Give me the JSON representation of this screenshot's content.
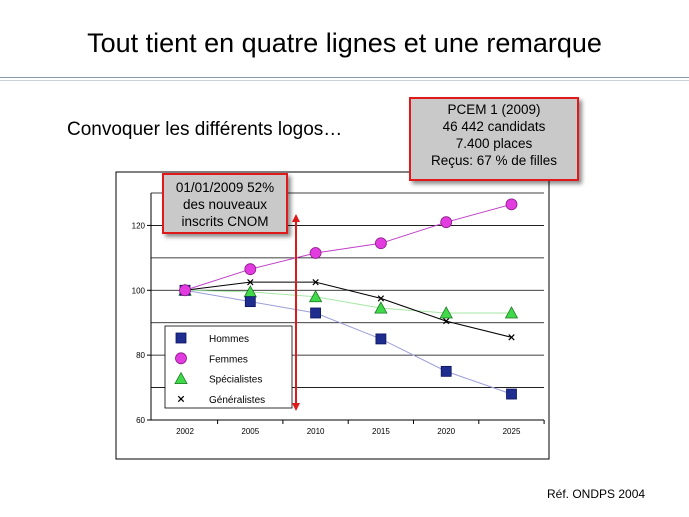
{
  "slide": {
    "title": "Tout tient en quatre lignes et une remarque",
    "subtitle": "Convoquer les différents logos…",
    "reference": "Réf. ONDPS 2004"
  },
  "callouts": {
    "pcem": [
      "PCEM 1 (2009)",
      "46 442 candidats",
      "7.400 places",
      "Reçus: 67 % de filles"
    ],
    "cnom": [
      "01/01/2009 52%",
      "des nouveaux",
      "inscrits CNOM"
    ]
  },
  "colors": {
    "accent_red": "#e0191a",
    "callout_fill": "#c9c9c9",
    "hommes": "#1f2d8f",
    "femmes": "#e23be0",
    "specialistes": "#3fd94a",
    "generalistes": "#000000"
  },
  "chart_data": {
    "type": "line",
    "title": "",
    "xlabel": "",
    "ylabel": "",
    "x": [
      2002,
      2005,
      2010,
      2015,
      2020,
      2025
    ],
    "ylim": [
      60,
      130
    ],
    "yticks": [
      60,
      80,
      100,
      120
    ],
    "grid": true,
    "legend_position": "bottom-left",
    "annotation_year": 2009,
    "series": [
      {
        "name": "Hommes",
        "marker": "square",
        "color": "#1f2d8f",
        "line_color": "#9b9ed8",
        "values": [
          100,
          96.5,
          93,
          85,
          75,
          68
        ]
      },
      {
        "name": "Femmes",
        "marker": "circle",
        "color": "#e23be0",
        "line_color": "#c040c8",
        "values": [
          100,
          106.5,
          111.5,
          114.5,
          121,
          126.5
        ]
      },
      {
        "name": "Spécialistes",
        "marker": "triangle",
        "color": "#3fd94a",
        "line_color": "#a6e6a6",
        "values": [
          100,
          99.5,
          98,
          94.5,
          93,
          93
        ]
      },
      {
        "name": "Généralistes",
        "marker": "x",
        "color": "#000000",
        "line_color": "#000000",
        "values": [
          100,
          102.5,
          102.5,
          97.5,
          90.5,
          85.5
        ]
      }
    ]
  }
}
